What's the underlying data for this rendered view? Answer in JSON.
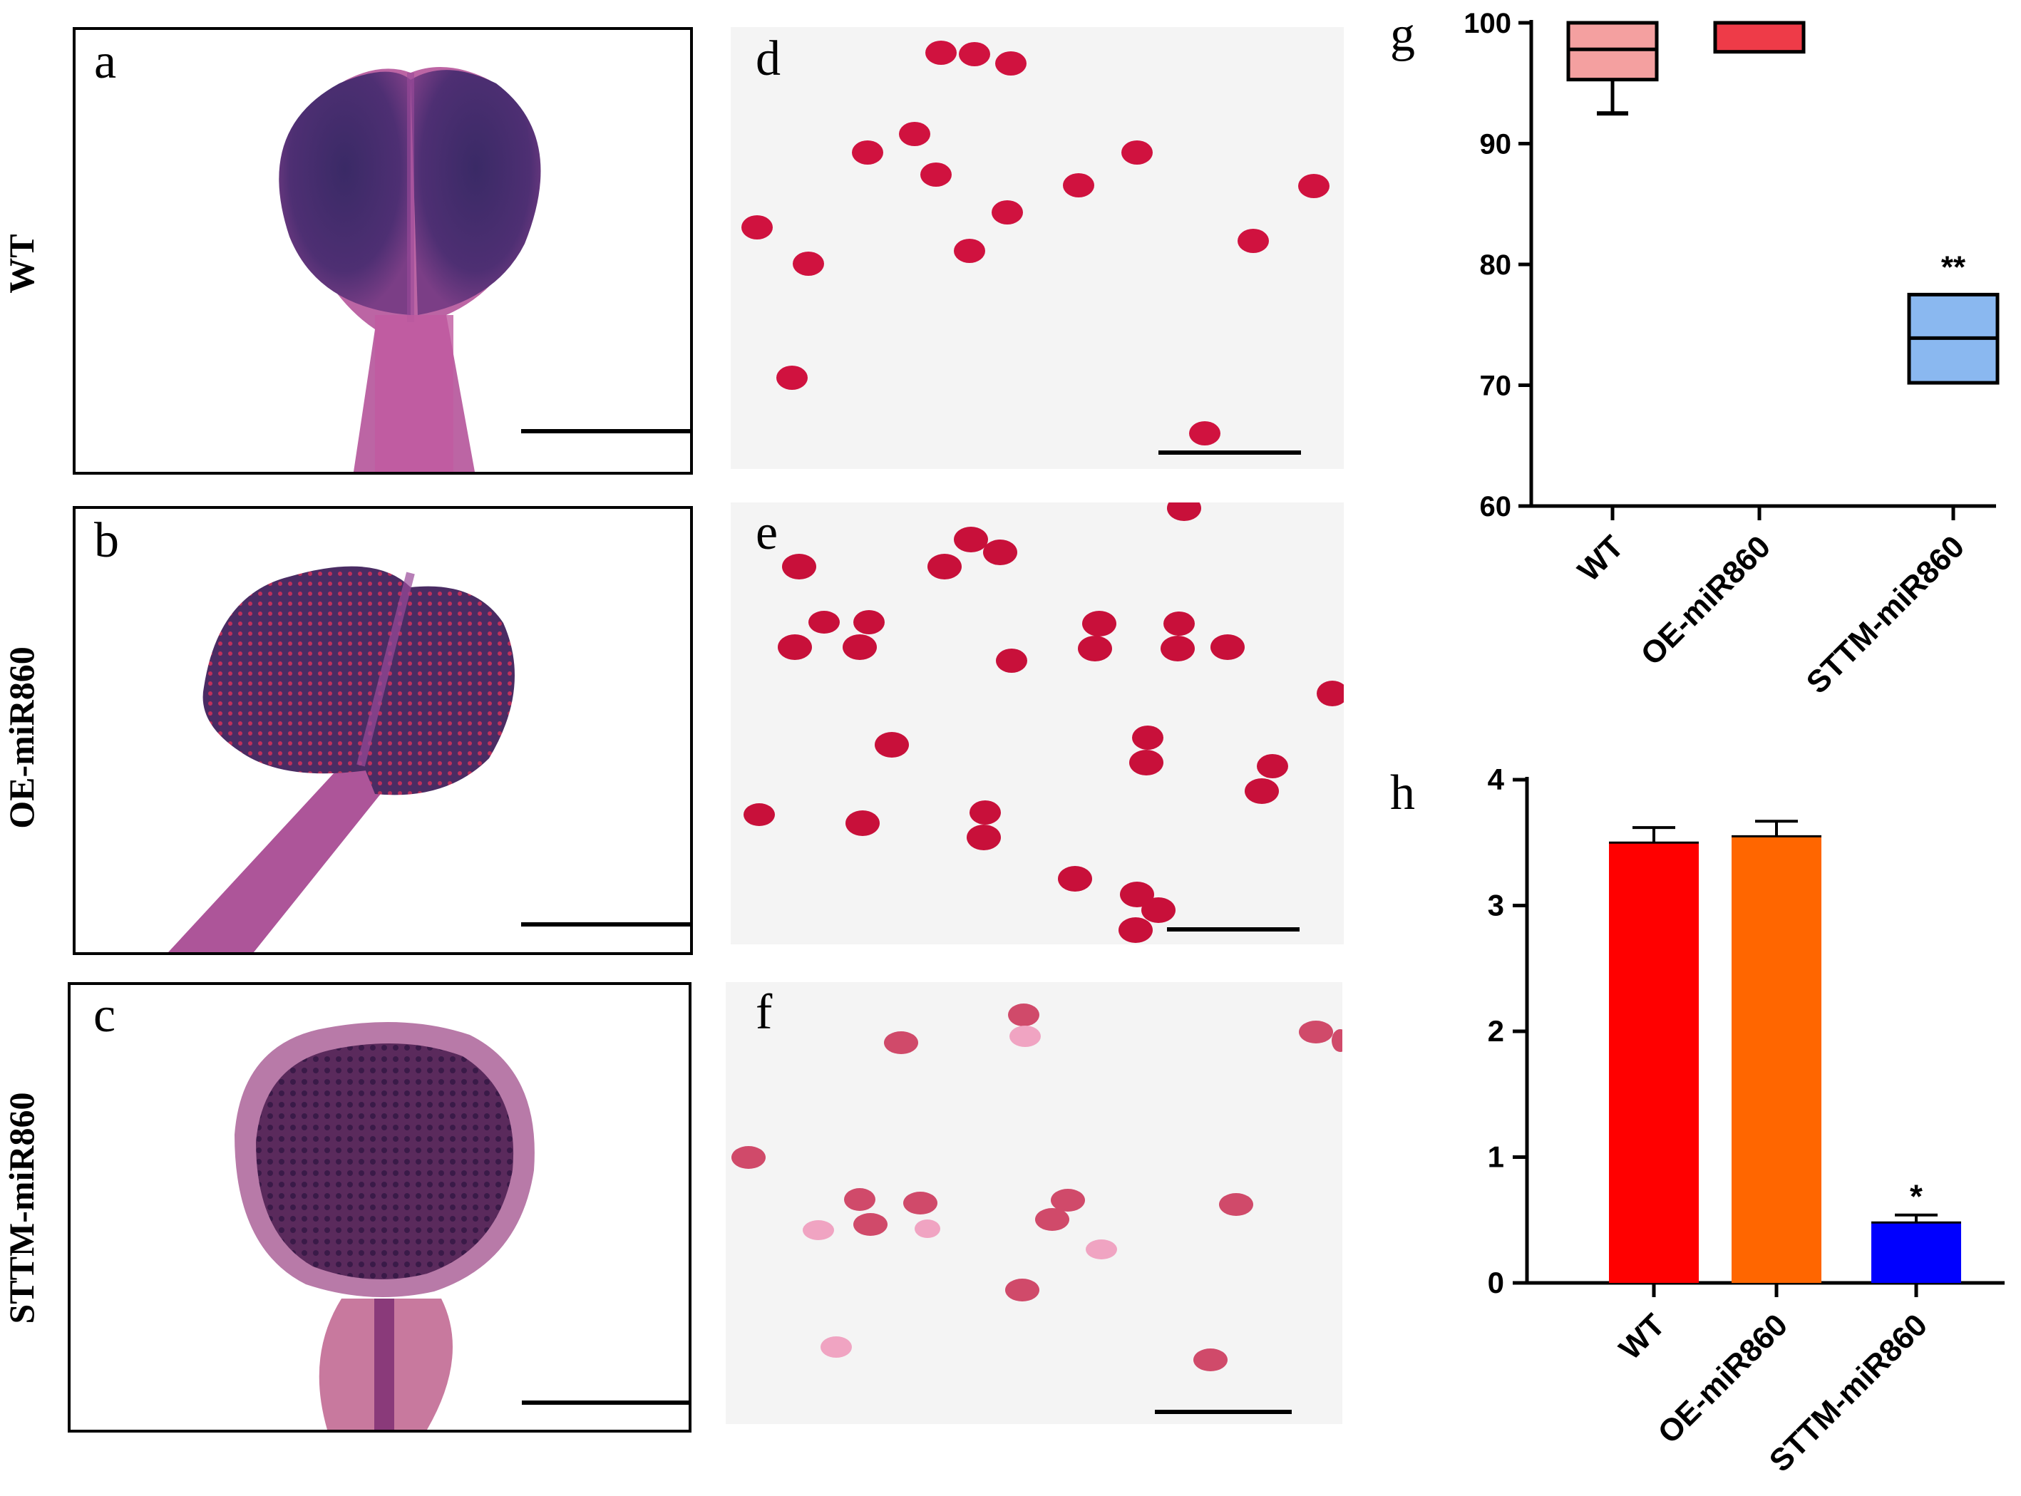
{
  "figure": {
    "row_labels": [
      "WT",
      "OE-miR860",
      "STTM-miR860"
    ],
    "panel_letters": {
      "a": "a",
      "b": "b",
      "c": "c",
      "d": "d",
      "e": "e",
      "f": "f",
      "g": "g",
      "h": "h"
    }
  },
  "colors": {
    "anther_dark": "#4a2a6b",
    "anther_pink": "#b0448c",
    "pollen_viable": "#d0123f",
    "pollen_pale": "#f0a4c2",
    "wt_box": "#f4a0a0",
    "oe_box": "#ee3b48",
    "sttm_box": "#8ab8f0",
    "wt_bar": "#ff0000",
    "oe_bar": "#ff6600",
    "sttm_bar": "#0000ff"
  },
  "chart_data": [
    {
      "type": "box",
      "panel": "g",
      "categories": [
        "WT",
        "OE-miR860",
        "STTM-miR860"
      ],
      "ylim": [
        60,
        100
      ],
      "yticks": [
        "60",
        "70",
        "80",
        "90",
        "100"
      ],
      "boxes": [
        {
          "category": "WT",
          "min": 92.5,
          "q1": 95.3,
          "median": 97.8,
          "q3": 100,
          "max": 100
        },
        {
          "category": "OE-miR860",
          "min": 97.6,
          "q1": 97.6,
          "median": 100,
          "q3": 100,
          "max": 100
        },
        {
          "category": "STTM-miR860",
          "min": 70.2,
          "q1": 70.2,
          "median": 73.9,
          "q3": 77.5,
          "max": 77.5
        }
      ],
      "annotations": [
        {
          "category": "STTM-miR860",
          "text": "**"
        }
      ]
    },
    {
      "type": "bar",
      "panel": "h",
      "categories": [
        "WT",
        "OE-miR860",
        "STTM-miR860"
      ],
      "values": [
        3.5,
        3.55,
        0.48
      ],
      "errors": [
        0.12,
        0.12,
        0.06
      ],
      "ylim": [
        0,
        4
      ],
      "yticks": [
        "0",
        "1",
        "2",
        "3",
        "4"
      ],
      "annotations": [
        {
          "category": "STTM-miR860",
          "text": "*"
        }
      ]
    }
  ]
}
